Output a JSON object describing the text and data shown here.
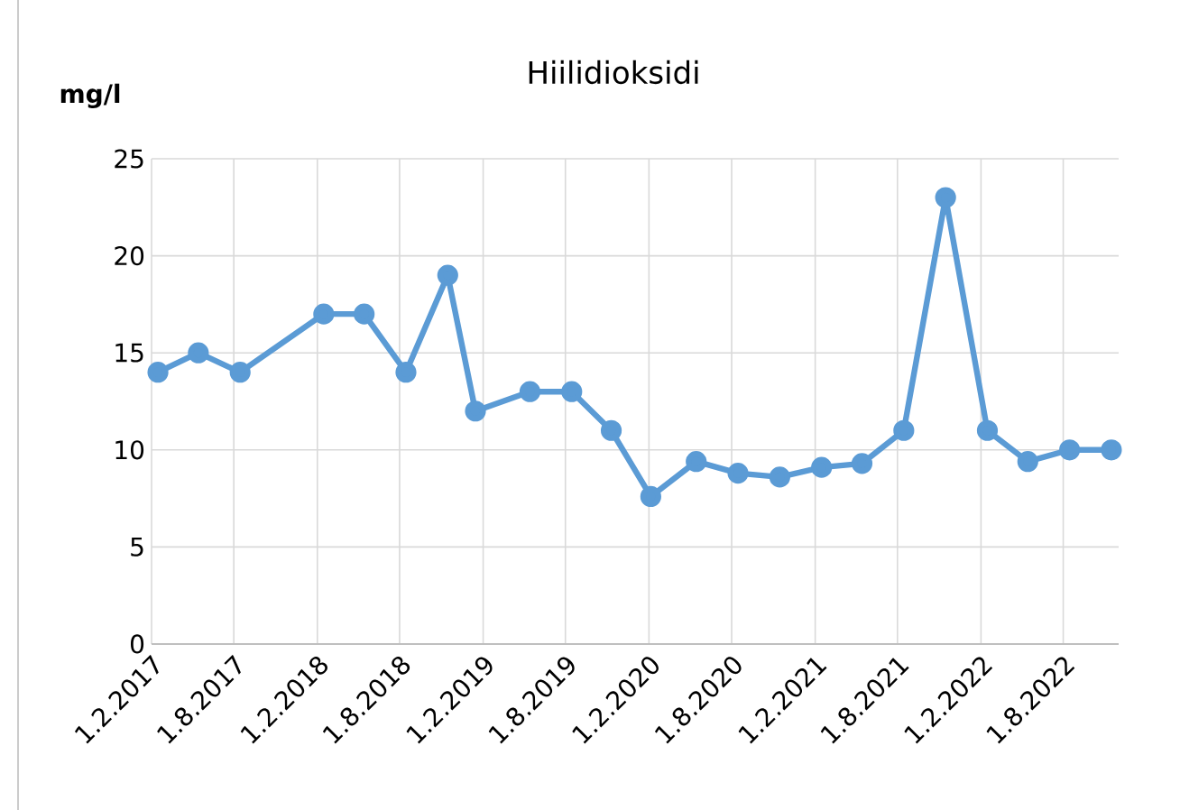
{
  "chart_data": {
    "type": "line",
    "title": "Hiilidioksidi",
    "ylabel": "mg/l",
    "x": [
      "2017-02-15",
      "2017-05-15",
      "2017-08-15",
      "2018-02-15",
      "2018-05-15",
      "2018-08-15",
      "2018-11-15",
      "2019-01-15",
      "2019-05-15",
      "2019-08-15",
      "2019-11-10",
      "2020-02-05",
      "2020-05-15",
      "2020-08-15",
      "2020-11-15",
      "2021-02-15",
      "2021-05-15",
      "2021-08-15",
      "2021-11-15",
      "2022-02-15",
      "2022-05-15",
      "2022-08-15",
      "2022-11-15"
    ],
    "series": [
      {
        "color": "#5b9bd5",
        "values": [
          14,
          15,
          14,
          17,
          17,
          14,
          19,
          12,
          13,
          13,
          11,
          7.6,
          9.4,
          8.8,
          8.6,
          9.1,
          9.3,
          11,
          23,
          11,
          9.4,
          10,
          10
        ]
      }
    ],
    "xlim": [
      "2017-02-01",
      "2022-12-01"
    ],
    "xticks": [
      {
        "value": "2017-02-01",
        "label": "1.2.2017"
      },
      {
        "value": "2017-08-01",
        "label": "1.8.2017"
      },
      {
        "value": "2018-02-01",
        "label": "1.2.2018"
      },
      {
        "value": "2018-08-01",
        "label": "1.8.2018"
      },
      {
        "value": "2019-02-01",
        "label": "1.2.2019"
      },
      {
        "value": "2019-08-01",
        "label": "1.8.2019"
      },
      {
        "value": "2020-02-01",
        "label": "1.2.2020"
      },
      {
        "value": "2020-08-01",
        "label": "1.8.2020"
      },
      {
        "value": "2021-02-01",
        "label": "1.2.2021"
      },
      {
        "value": "2021-08-01",
        "label": "1.8.2021"
      },
      {
        "value": "2022-02-01",
        "label": "1.2.2022"
      },
      {
        "value": "2022-08-01",
        "label": "1.8.2022"
      }
    ],
    "ylim": [
      0,
      25
    ],
    "yticks": [
      0,
      5,
      10,
      15,
      20,
      25
    ],
    "grid": true,
    "marker": "circle",
    "line_style": "solid"
  }
}
